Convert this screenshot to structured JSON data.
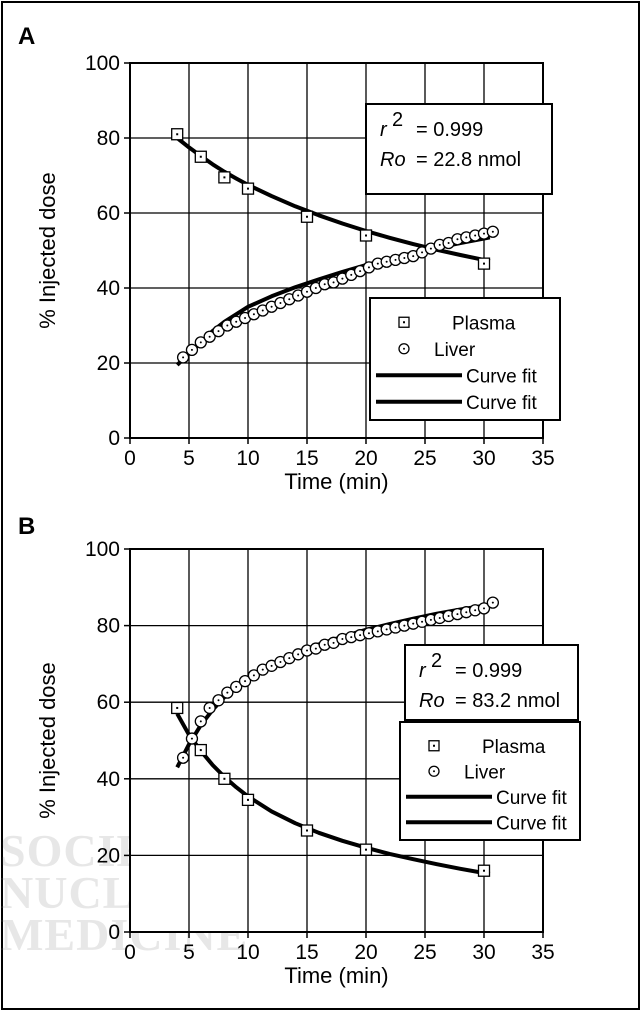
{
  "watermark": {
    "line1": "SOCIETY OF",
    "line2": "NUCLEAR",
    "line3": "MEDICINE"
  },
  "colors": {
    "ink": "#000000",
    "background": "#ffffff",
    "plot_area": "#ffffff"
  },
  "chart_data": [
    {
      "type": "scatter",
      "panel_label": "A",
      "xlabel": "Time (min)",
      "ylabel": "% Injected dose",
      "xlim": [
        0,
        35
      ],
      "ylim": [
        0,
        100
      ],
      "xticks": [
        0,
        5,
        10,
        15,
        20,
        25,
        30,
        35
      ],
      "yticks": [
        0,
        20,
        40,
        60,
        80,
        100
      ],
      "grid": true,
      "legend_position": "right-middle",
      "stats": {
        "r2_label": "r",
        "r2_sup": "2",
        "r2_value": "= 0.999",
        "ro_label": "Ro",
        "ro_value": "= 22.8 nmol"
      },
      "series": [
        {
          "name": "Plasma",
          "marker": "square",
          "x": [
            4,
            6,
            8,
            10,
            15,
            20,
            30
          ],
          "y": [
            81,
            75,
            69.5,
            66.5,
            59,
            54,
            46.5
          ]
        },
        {
          "name": "Liver",
          "marker": "circle",
          "x": [
            4.5,
            5.25,
            6,
            6.75,
            7.5,
            8.25,
            9,
            9.75,
            10.5,
            11.25,
            12,
            12.75,
            13.5,
            14.25,
            15,
            15.75,
            16.5,
            17.25,
            18,
            18.75,
            19.5,
            20.25,
            21,
            21.75,
            22.5,
            23.25,
            24,
            24.75,
            25.5,
            26.25,
            27,
            27.75,
            28.5,
            29.25,
            30,
            30.75
          ],
          "y": [
            21.5,
            23.5,
            25.5,
            27,
            28.5,
            30,
            31,
            32,
            33,
            34,
            35,
            36,
            37,
            38,
            39,
            40,
            41,
            41.5,
            42.5,
            43.5,
            44.5,
            45.5,
            46.5,
            47,
            47.5,
            48,
            48.5,
            49.5,
            50.5,
            51.5,
            52,
            53,
            53.5,
            54,
            54.5,
            55
          ]
        },
        {
          "name": "Curve fit",
          "marker": "line",
          "x": [
            4,
            5,
            6,
            7,
            8,
            9,
            10,
            12,
            14,
            16,
            18,
            20,
            22,
            24,
            26,
            28,
            30,
            30.5
          ],
          "y": [
            80,
            77.5,
            75.2,
            73,
            71,
            69.2,
            67.5,
            64.5,
            61.8,
            59.4,
            57.2,
            55.2,
            53.4,
            51.7,
            50.2,
            48.8,
            47.5,
            47.2
          ]
        },
        {
          "name": "Curve fit",
          "marker": "line",
          "x": [
            4,
            5,
            6,
            7,
            8,
            9,
            10,
            12,
            14,
            16,
            18,
            20,
            22,
            24,
            26,
            28,
            30,
            30.5
          ],
          "y": [
            19.5,
            22.5,
            25.5,
            28.5,
            31,
            33,
            35,
            37.8,
            40.2,
            42.3,
            44.3,
            46.1,
            47.8,
            49.3,
            50.7,
            52,
            53.2,
            53.5
          ]
        }
      ]
    },
    {
      "type": "scatter",
      "panel_label": "B",
      "xlabel": "Time (min)",
      "ylabel": "% Injected dose",
      "xlim": [
        0,
        35
      ],
      "ylim": [
        0,
        100
      ],
      "xticks": [
        0,
        5,
        10,
        15,
        20,
        25,
        30,
        35
      ],
      "yticks": [
        0,
        20,
        40,
        60,
        80,
        100
      ],
      "grid": true,
      "legend_position": "right-middle",
      "stats": {
        "r2_label": "r",
        "r2_sup": "2",
        "r2_value": "= 0.999",
        "ro_label": "Ro",
        "ro_value": "= 83.2 nmol"
      },
      "series": [
        {
          "name": "Plasma",
          "marker": "square",
          "x": [
            4,
            6,
            8,
            10,
            15,
            20,
            30
          ],
          "y": [
            58.5,
            47.5,
            40,
            34.5,
            26.5,
            21.5,
            16
          ]
        },
        {
          "name": "Liver",
          "marker": "circle",
          "x": [
            4.5,
            5.25,
            6,
            6.75,
            7.5,
            8.25,
            9,
            9.75,
            10.5,
            11.25,
            12,
            12.75,
            13.5,
            14.25,
            15,
            15.75,
            16.5,
            17.25,
            18,
            18.75,
            19.5,
            20.25,
            21,
            21.75,
            22.5,
            23.25,
            24,
            24.75,
            25.5,
            26.25,
            27,
            27.75,
            28.5,
            29.25,
            30,
            30.75
          ],
          "y": [
            45.5,
            50.5,
            55,
            58.5,
            60.5,
            62.5,
            64,
            65.5,
            67,
            68.5,
            69.5,
            70.5,
            71.5,
            72.5,
            73.5,
            74,
            75,
            75.5,
            76.5,
            77,
            77.5,
            78,
            78.5,
            79,
            79.5,
            80,
            80.5,
            81,
            81.5,
            82,
            82.5,
            83,
            83.5,
            84,
            84.5,
            86
          ]
        },
        {
          "name": "Curve fit",
          "marker": "line",
          "x": [
            4,
            5,
            6,
            7,
            8,
            9,
            10,
            12,
            14,
            16,
            18,
            20,
            22,
            24,
            26,
            28,
            30,
            30.5
          ],
          "y": [
            57,
            51.5,
            47.3,
            43.6,
            40.5,
            37.8,
            35.4,
            31.5,
            28.4,
            25.9,
            23.8,
            22,
            20.4,
            19,
            17.7,
            16.5,
            15.4,
            15.2
          ]
        },
        {
          "name": "Curve fit",
          "marker": "line",
          "x": [
            4,
            5,
            6,
            7,
            8,
            9,
            10,
            12,
            14,
            16,
            18,
            20,
            22,
            24,
            26,
            28,
            30,
            30.5
          ],
          "y": [
            43,
            49,
            54,
            58,
            61.3,
            64,
            66.2,
            69.8,
            72.7,
            75.1,
            77.1,
            78.9,
            80.4,
            81.8,
            83.1,
            84.2,
            85.2,
            85.5
          ]
        }
      ]
    }
  ]
}
